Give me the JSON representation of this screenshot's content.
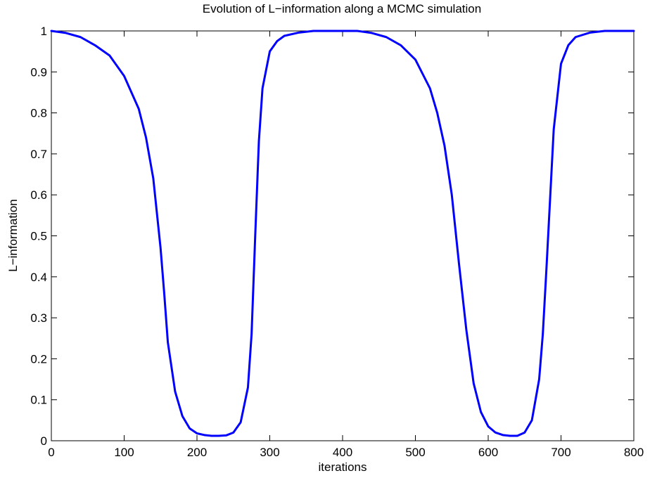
{
  "chart_data": {
    "type": "line",
    "title": "Evolution of L−information along a MCMC simulation",
    "xlabel": "iterations",
    "ylabel": "L−information",
    "xlim": [
      0,
      800
    ],
    "ylim": [
      0,
      1
    ],
    "xticks": [
      0,
      100,
      200,
      300,
      400,
      500,
      600,
      700,
      800
    ],
    "yticks": [
      0,
      0.1,
      0.2,
      0.3,
      0.4,
      0.5,
      0.6,
      0.7,
      0.8,
      0.9,
      1
    ],
    "ytick_labels": [
      "0",
      "0.1",
      "0.2",
      "0.3",
      "0.4",
      "0.5",
      "0.6",
      "0.7",
      "0.8",
      "0.9",
      "1"
    ],
    "grid": false,
    "line_color": "#0000ff",
    "series": [
      {
        "x": [
          0,
          20,
          40,
          60,
          80,
          100,
          120,
          130,
          140,
          150,
          155,
          160,
          170,
          180,
          190,
          200,
          210,
          220,
          230,
          240,
          250,
          260,
          270,
          275,
          280,
          285,
          290,
          300,
          310,
          320,
          340,
          360,
          380,
          400,
          420,
          440,
          460,
          480,
          500,
          520,
          530,
          540,
          550,
          560,
          570,
          580,
          590,
          600,
          610,
          620,
          630,
          640,
          650,
          660,
          670,
          675,
          680,
          690,
          700,
          710,
          720,
          740,
          760,
          780,
          800
        ],
        "y": [
          1.0,
          0.995,
          0.985,
          0.965,
          0.94,
          0.89,
          0.81,
          0.74,
          0.64,
          0.47,
          0.36,
          0.24,
          0.12,
          0.06,
          0.03,
          0.018,
          0.014,
          0.012,
          0.012,
          0.013,
          0.02,
          0.045,
          0.13,
          0.26,
          0.5,
          0.73,
          0.86,
          0.95,
          0.975,
          0.988,
          0.996,
          1.0,
          1.0,
          1.0,
          1.0,
          0.995,
          0.985,
          0.965,
          0.93,
          0.86,
          0.8,
          0.72,
          0.6,
          0.43,
          0.27,
          0.14,
          0.07,
          0.035,
          0.02,
          0.014,
          0.012,
          0.012,
          0.02,
          0.05,
          0.15,
          0.26,
          0.42,
          0.76,
          0.92,
          0.965,
          0.985,
          0.996,
          1.0,
          1.0,
          1.0
        ]
      }
    ]
  }
}
